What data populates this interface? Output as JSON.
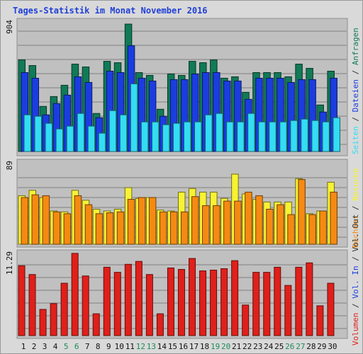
{
  "title": "Tages-Statistik im Monat November 2016",
  "colors": {
    "background": "#d9d9d9",
    "plot_bg": "#c0c0c0",
    "border": "#8e8e8e",
    "grid": "#7f7f7f",
    "title": "#1f3fd8",
    "day_weekday": "#111111",
    "day_weekend": "#1e8a5a",
    "anfragen": "#117a57",
    "dateien": "#1b3de0",
    "seiten": "#33ddf3",
    "besuche": "#f7f233",
    "rechner": "#f58a12",
    "volumen": "#e0201a",
    "label_neutral": "#333333"
  },
  "chart_data": [
    {
      "type": "bar",
      "panel": "top",
      "ymax_label": "904",
      "ylim": [
        0,
        904
      ],
      "grid": true,
      "categories": [
        "1",
        "2",
        "3",
        "4",
        "5",
        "6",
        "7",
        "8",
        "9",
        "10",
        "11",
        "12",
        "13",
        "14",
        "15",
        "16",
        "17",
        "18",
        "19",
        "20",
        "21",
        "22",
        "23",
        "24",
        "25",
        "26",
        "27",
        "28",
        "29",
        "30"
      ],
      "weekend_days": [
        "5",
        "6",
        "12",
        "13",
        "19",
        "20",
        "26",
        "27"
      ],
      "series": [
        {
          "name": "Anfragen",
          "color_key": "anfragen",
          "values": [
            650,
            610,
            320,
            390,
            470,
            620,
            600,
            270,
            640,
            630,
            904,
            560,
            540,
            300,
            550,
            540,
            640,
            630,
            650,
            520,
            530,
            420,
            560,
            560,
            560,
            530,
            620,
            590,
            330,
            570
          ]
        },
        {
          "name": "Dateien",
          "color_key": "dateien",
          "values": [
            560,
            520,
            260,
            340,
            400,
            530,
            490,
            240,
            570,
            560,
            750,
            520,
            500,
            250,
            510,
            510,
            550,
            560,
            560,
            500,
            500,
            370,
            520,
            520,
            520,
            490,
            510,
            510,
            280,
            520
          ]
        },
        {
          "name": "Seiten",
          "color_key": "seiten",
          "values": [
            260,
            250,
            200,
            160,
            180,
            270,
            180,
            130,
            290,
            260,
            480,
            210,
            210,
            190,
            200,
            210,
            210,
            260,
            270,
            210,
            210,
            270,
            210,
            210,
            210,
            220,
            230,
            220,
            210,
            240
          ]
        }
      ],
      "right_labels": [
        "Anfragen",
        "Dateien",
        "Seiten"
      ]
    },
    {
      "type": "bar",
      "panel": "middle",
      "ymax_label": "89",
      "ylim": [
        0,
        89
      ],
      "grid": true,
      "categories": [
        "1",
        "2",
        "3",
        "4",
        "5",
        "6",
        "7",
        "8",
        "9",
        "10",
        "11",
        "12",
        "13",
        "14",
        "15",
        "16",
        "17",
        "18",
        "19",
        "20",
        "21",
        "22",
        "23",
        "24",
        "25",
        "26",
        "27",
        "28",
        "29",
        "30"
      ],
      "weekend_days": [
        "5",
        "6",
        "12",
        "13",
        "19",
        "20",
        "26",
        "27"
      ],
      "series": [
        {
          "name": "Besuche",
          "color_key": "besuche",
          "values": [
            54,
            60,
            52,
            37,
            36,
            60,
            49,
            39,
            37,
            39,
            63,
            51,
            52,
            38,
            37,
            58,
            62,
            58,
            58,
            51,
            78,
            56,
            50,
            47,
            47,
            47,
            73,
            34,
            37,
            69
          ]
        },
        {
          "name": "Rechner",
          "color_key": "rechner",
          "values": [
            52,
            55,
            54,
            36,
            34,
            54,
            44,
            34,
            35,
            36,
            50,
            52,
            52,
            36,
            36,
            36,
            53,
            43,
            43,
            48,
            48,
            58,
            54,
            39,
            44,
            33,
            72,
            33,
            37,
            58
          ]
        }
      ],
      "right_labels": [
        "Besuche",
        "Rechner"
      ]
    },
    {
      "type": "bar",
      "panel": "bottom",
      "ymax_label": "11.29",
      "ylim": [
        0,
        11.29
      ],
      "grid": true,
      "categories": [
        "1",
        "2",
        "3",
        "4",
        "5",
        "6",
        "7",
        "8",
        "9",
        "10",
        "11",
        "12",
        "13",
        "14",
        "15",
        "16",
        "17",
        "18",
        "19",
        "20",
        "21",
        "22",
        "23",
        "24",
        "25",
        "26",
        "27",
        "28",
        "29",
        "30"
      ],
      "weekend_days": [
        "5",
        "6",
        "12",
        "13",
        "19",
        "20",
        "26",
        "27"
      ],
      "series": [
        {
          "name": "Volumen",
          "color_key": "volumen",
          "values": [
            9.6,
            8.4,
            3.6,
            4.4,
            7.2,
            11.3,
            8.2,
            3.0,
            9.4,
            8.7,
            9.8,
            10.2,
            8.4,
            3.0,
            9.3,
            9.1,
            10.6,
            8.9,
            9.0,
            9.2,
            10.3,
            4.2,
            8.7,
            8.7,
            9.4,
            6.9,
            9.4,
            10.0,
            4.1,
            7.2
          ]
        }
      ],
      "right_labels": [
        "Vol. Out",
        "Vol. In",
        "Volumen"
      ]
    }
  ]
}
